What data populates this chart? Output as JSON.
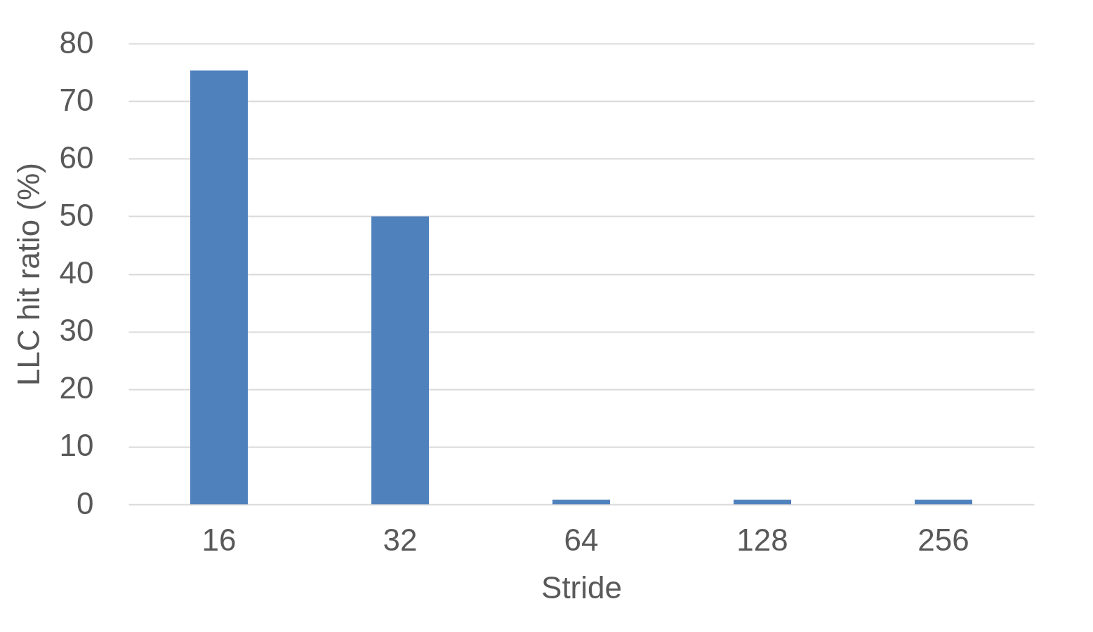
{
  "chart_data": {
    "type": "bar",
    "xlabel": "Stride",
    "ylabel": "LLC hit ratio (%)",
    "categories": [
      "16",
      "32",
      "64",
      "128",
      "256"
    ],
    "values": [
      75.3,
      50,
      0.8,
      0.8,
      0.8
    ],
    "color": "#4f81bd",
    "ylim": [
      0,
      80
    ],
    "yticks": [
      0,
      10,
      20,
      30,
      40,
      50,
      60,
      70,
      80
    ],
    "grid": "y"
  }
}
